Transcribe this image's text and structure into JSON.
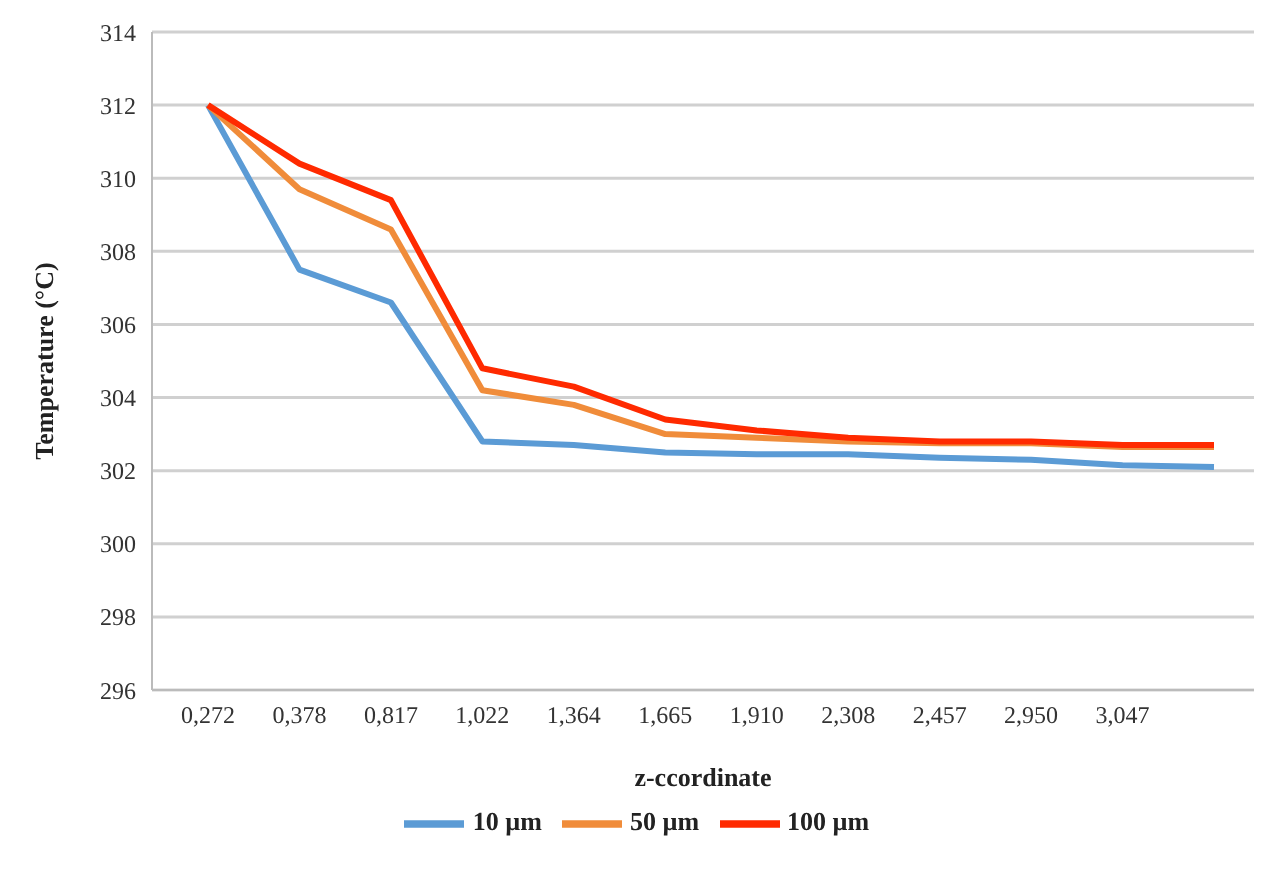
{
  "chart_data": {
    "type": "line",
    "xlabel": "z-ccordinate",
    "ylabel": "Temperature   (°C)",
    "categories": [
      "0,272",
      "0,378",
      "0,817",
      "1,022",
      "1,364",
      "1,665",
      "1,910",
      "2,308",
      "2,457",
      "2,950",
      "3,047",
      null
    ],
    "series": [
      {
        "name": "10 µm",
        "color": "#5b9bd5",
        "values": [
          312,
          307.5,
          306.6,
          302.8,
          302.7,
          302.5,
          302.45,
          302.45,
          302.35,
          302.3,
          302.15,
          302.1
        ]
      },
      {
        "name": "50 µm",
        "color": "#f08c3a",
        "values": [
          312,
          309.7,
          308.6,
          304.2,
          303.8,
          303.0,
          302.9,
          302.8,
          302.75,
          302.75,
          302.65,
          302.65
        ]
      },
      {
        "name": "100 µm",
        "color": "#ff2a00",
        "values": [
          312,
          310.4,
          309.4,
          304.8,
          304.3,
          303.4,
          303.1,
          302.9,
          302.8,
          302.8,
          302.7,
          302.7
        ]
      }
    ],
    "ylim": [
      296,
      314
    ],
    "yticks": [
      296,
      298,
      300,
      302,
      304,
      306,
      308,
      310,
      312,
      314
    ],
    "grid": "y",
    "legend": "bottom",
    "marker": "none",
    "line_style": "solid"
  }
}
